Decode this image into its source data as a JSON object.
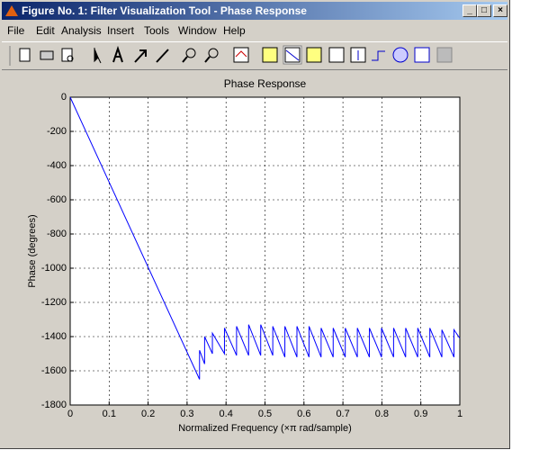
{
  "window": {
    "title": "Figure No. 1: Filter Visualization Tool - Phase Response"
  },
  "menu": [
    "File",
    "Edit",
    "Analysis",
    "Insert",
    "Tools",
    "Window",
    "Help"
  ],
  "chart_data": {
    "type": "line",
    "title": "Phase Response",
    "xlabel": "Normalized Frequency  (×π rad/sample)",
    "ylabel": "Phase (degrees)",
    "xlim": [
      0,
      1
    ],
    "ylim": [
      -1800,
      0
    ],
    "xticks": [
      0,
      0.1,
      0.2,
      0.3,
      0.4,
      0.5,
      0.6,
      0.7,
      0.8,
      0.9,
      1
    ],
    "yticks": [
      -1800,
      -1600,
      -1400,
      -1200,
      -1000,
      -800,
      -600,
      -400,
      -200,
      0
    ],
    "grid": true,
    "series": [
      {
        "color": "#0000ff",
        "x": [
          0,
          0.332,
          0.332,
          0.345,
          0.345,
          0.365,
          0.365,
          0.396,
          0.396,
          0.427,
          0.427,
          0.458,
          0.458,
          0.489,
          0.489,
          0.52,
          0.52,
          0.551,
          0.551,
          0.582,
          0.582,
          0.613,
          0.613,
          0.644,
          0.644,
          0.675,
          0.675,
          0.706,
          0.706,
          0.737,
          0.737,
          0.768,
          0.768,
          0.799,
          0.799,
          0.83,
          0.83,
          0.861,
          0.861,
          0.892,
          0.892,
          0.923,
          0.923,
          0.954,
          0.954,
          0.985,
          0.985,
          1
        ],
        "values": [
          0,
          -1650,
          -1480,
          -1560,
          -1400,
          -1500,
          -1380,
          -1500,
          -1350,
          -1510,
          -1340,
          -1510,
          -1330,
          -1510,
          -1330,
          -1510,
          -1340,
          -1520,
          -1340,
          -1520,
          -1340,
          -1520,
          -1340,
          -1520,
          -1350,
          -1520,
          -1350,
          -1520,
          -1350,
          -1520,
          -1350,
          -1520,
          -1350,
          -1520,
          -1350,
          -1520,
          -1350,
          -1520,
          -1350,
          -1520,
          -1350,
          -1520,
          -1350,
          -1520,
          -1360,
          -1520,
          -1360,
          -1410
        ]
      }
    ]
  }
}
